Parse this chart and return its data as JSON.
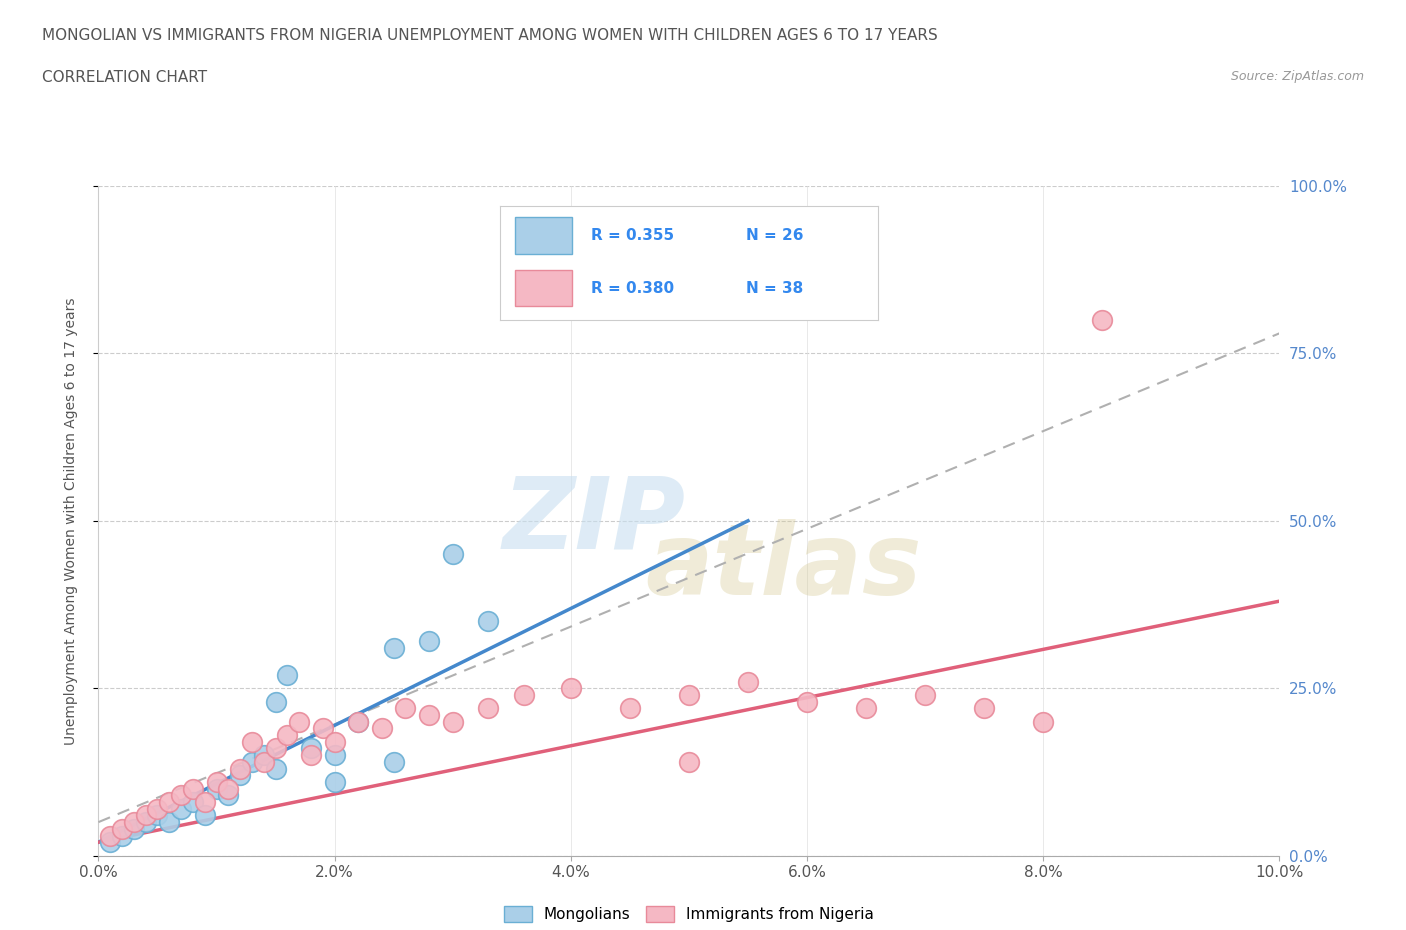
{
  "title_line1": "MONGOLIAN VS IMMIGRANTS FROM NIGERIA UNEMPLOYMENT AMONG WOMEN WITH CHILDREN AGES 6 TO 17 YEARS",
  "title_line2": "CORRELATION CHART",
  "source_text": "Source: ZipAtlas.com",
  "ylabel": "Unemployment Among Women with Children Ages 6 to 17 years",
  "xlim": [
    0.0,
    0.1
  ],
  "ylim": [
    0.0,
    1.0
  ],
  "xticks": [
    0.0,
    0.02,
    0.04,
    0.06,
    0.08,
    0.1
  ],
  "xticklabels": [
    "0.0%",
    "2.0%",
    "4.0%",
    "6.0%",
    "8.0%",
    "10.0%"
  ],
  "yticks": [
    0.0,
    0.25,
    0.5,
    0.75,
    1.0
  ],
  "yticklabels": [
    "0.0%",
    "25.0%",
    "50.0%",
    "75.0%",
    "100.0%"
  ],
  "mongolian_color": "#aacfe8",
  "nigeria_color": "#f5b8c4",
  "mongolian_edge": "#6aafd4",
  "nigeria_edge": "#e88a9a",
  "trend_blue": "#4488cc",
  "trend_pink": "#e0607a",
  "R_mongolian": 0.355,
  "N_mongolian": 26,
  "R_nigeria": 0.38,
  "N_nigeria": 38,
  "legend_label_mongolian": "Mongolians",
  "legend_label_nigeria": "Immigrants from Nigeria",
  "watermark_zip": "ZIP",
  "watermark_atlas": "atlas",
  "background_color": "#ffffff",
  "grid_color": "#cccccc",
  "title_color": "#555555",
  "mongolian_x": [
    0.001,
    0.002,
    0.003,
    0.004,
    0.005,
    0.006,
    0.007,
    0.008,
    0.009,
    0.01,
    0.011,
    0.012,
    0.013,
    0.014,
    0.015,
    0.016,
    0.018,
    0.02,
    0.022,
    0.025,
    0.028,
    0.03,
    0.033,
    0.015,
    0.02,
    0.025
  ],
  "mongolian_y": [
    0.02,
    0.03,
    0.04,
    0.05,
    0.06,
    0.05,
    0.07,
    0.08,
    0.06,
    0.1,
    0.09,
    0.12,
    0.14,
    0.15,
    0.23,
    0.27,
    0.16,
    0.15,
    0.2,
    0.31,
    0.32,
    0.45,
    0.35,
    0.13,
    0.11,
    0.14
  ],
  "nigeria_x": [
    0.001,
    0.002,
    0.003,
    0.004,
    0.005,
    0.006,
    0.007,
    0.008,
    0.009,
    0.01,
    0.011,
    0.012,
    0.013,
    0.014,
    0.015,
    0.016,
    0.017,
    0.018,
    0.019,
    0.02,
    0.022,
    0.024,
    0.026,
    0.028,
    0.03,
    0.033,
    0.036,
    0.04,
    0.045,
    0.05,
    0.055,
    0.06,
    0.065,
    0.07,
    0.075,
    0.08,
    0.085,
    0.05
  ],
  "nigeria_y": [
    0.03,
    0.04,
    0.05,
    0.06,
    0.07,
    0.08,
    0.09,
    0.1,
    0.08,
    0.11,
    0.1,
    0.13,
    0.17,
    0.14,
    0.16,
    0.18,
    0.2,
    0.15,
    0.19,
    0.17,
    0.2,
    0.19,
    0.22,
    0.21,
    0.2,
    0.22,
    0.24,
    0.25,
    0.22,
    0.24,
    0.26,
    0.23,
    0.22,
    0.24,
    0.22,
    0.2,
    0.8,
    0.14
  ],
  "blue_trend_x": [
    0.0,
    0.055
  ],
  "blue_trend_y": [
    0.02,
    0.5
  ],
  "pink_trend_x": [
    0.0,
    0.1
  ],
  "pink_trend_y": [
    0.02,
    0.38
  ],
  "dash_line_x": [
    0.0,
    0.1
  ],
  "dash_line_y": [
    0.05,
    0.78
  ]
}
